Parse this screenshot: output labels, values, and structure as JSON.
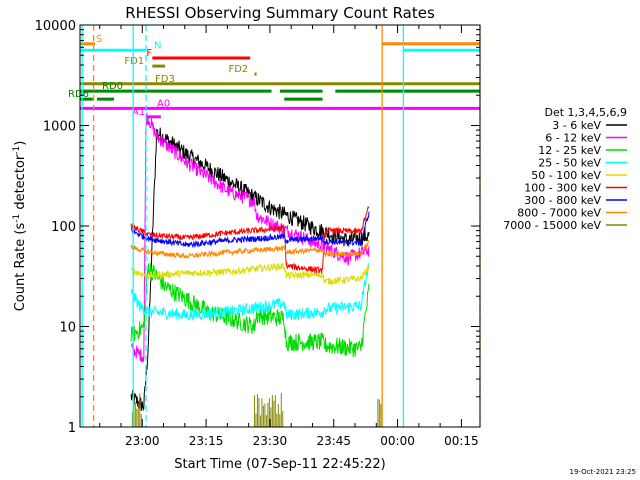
{
  "chart_data": {
    "type": "line",
    "title": "RHESSI Observing Summary Count Rates",
    "xlabel": "Start Time (07-Sep-11 22:45:22)",
    "ylabel_main": "Count Rate (s",
    "ylabel_sup1": "-1",
    "ylabel_mid": " detector",
    "ylabel_sup2": "-1",
    "ylabel_end": ")",
    "timestamp": "19-Oct-2021 23:25",
    "x_start_min": 0,
    "x_end_min": 94,
    "yscale": "log",
    "ylim": [
      1,
      10000
    ],
    "x_ticks": [
      {
        "min": 14.63,
        "label": "23:00"
      },
      {
        "min": 29.63,
        "label": "23:15"
      },
      {
        "min": 44.63,
        "label": "23:30"
      },
      {
        "min": 59.63,
        "label": "23:45"
      },
      {
        "min": 74.63,
        "label": "00:00"
      },
      {
        "min": 89.63,
        "label": "00:15"
      }
    ],
    "y_ticks": [
      {
        "value": 1,
        "label": "1"
      },
      {
        "value": 10,
        "label": "10"
      },
      {
        "value": 100,
        "label": "100"
      },
      {
        "value": 1000,
        "label": "1000"
      },
      {
        "value": 10000,
        "label": "10000"
      }
    ],
    "legend_title": "Det 1,3,4,5,6,9",
    "legend_position": "right",
    "series": [
      {
        "name": "3 - 6 keV",
        "color": "#000000",
        "base": [
          [
            12,
            2
          ],
          [
            15,
            1.6
          ],
          [
            16,
            6
          ],
          [
            18,
            860
          ],
          [
            25,
            520
          ],
          [
            35,
            280
          ],
          [
            45,
            150
          ],
          [
            55,
            95
          ],
          [
            63,
            72
          ],
          [
            68,
            80
          ]
        ],
        "noise": 0.08
      },
      {
        "name": "6 - 12 keV",
        "color": "#ff00ff",
        "base": [
          [
            12,
            6
          ],
          [
            15,
            5
          ],
          [
            15.5,
            1200
          ],
          [
            16,
            1200
          ],
          [
            18,
            780
          ],
          [
            25,
            430
          ],
          [
            35,
            220
          ],
          [
            41,
            175
          ],
          [
            41.5,
            128
          ],
          [
            45,
            105
          ],
          [
            53,
            75
          ],
          [
            63,
            48
          ],
          [
            68,
            58
          ]
        ],
        "noise": 0.07
      },
      {
        "name": "12 - 25 keV",
        "color": "#00dd00",
        "base": [
          [
            12,
            8
          ],
          [
            15,
            10
          ],
          [
            16,
            40
          ],
          [
            20,
            25
          ],
          [
            30,
            14
          ],
          [
            41,
            10
          ],
          [
            41.5,
            13
          ],
          [
            48,
            12
          ],
          [
            48.5,
            7
          ],
          [
            57,
            7
          ],
          [
            57.5,
            6.5
          ],
          [
            66,
            6
          ],
          [
            68,
            25
          ]
        ],
        "noise": 0.09
      },
      {
        "name": "25 - 50 keV",
        "color": "#00ffff",
        "base": [
          [
            12,
            22
          ],
          [
            14,
            16
          ],
          [
            16,
            14
          ],
          [
            25,
            13
          ],
          [
            35,
            14
          ],
          [
            48,
            17
          ],
          [
            48.5,
            13
          ],
          [
            57,
            14
          ],
          [
            57.5,
            15
          ],
          [
            66,
            16
          ],
          [
            68,
            45
          ]
        ],
        "noise": 0.06
      },
      {
        "name": "50 - 100 keV",
        "color": "#dddd00",
        "base": [
          [
            12,
            36
          ],
          [
            16,
            32
          ],
          [
            25,
            34
          ],
          [
            35,
            35
          ],
          [
            48,
            40
          ],
          [
            48.5,
            32
          ],
          [
            57,
            33
          ],
          [
            57.5,
            28
          ],
          [
            66,
            30
          ],
          [
            68,
            40
          ]
        ],
        "noise": 0.035
      },
      {
        "name": "100 - 300 keV",
        "color": "#ff0000",
        "base": [
          [
            12,
            100
          ],
          [
            16,
            82
          ],
          [
            25,
            76
          ],
          [
            35,
            86
          ],
          [
            48,
            95
          ],
          [
            48.5,
            40
          ],
          [
            57,
            36
          ],
          [
            57.5,
            90
          ],
          [
            66,
            88
          ],
          [
            68,
            160
          ]
        ],
        "noise": 0.03
      },
      {
        "name": "300 - 800 keV",
        "color": "#0000ff",
        "base": [
          [
            12,
            90
          ],
          [
            16,
            75
          ],
          [
            25,
            65
          ],
          [
            35,
            72
          ],
          [
            48,
            78
          ],
          [
            48.5,
            72
          ],
          [
            57,
            76
          ],
          [
            57.5,
            70
          ],
          [
            66,
            68
          ],
          [
            68,
            140
          ]
        ],
        "noise": 0.03
      },
      {
        "name": "800 - 7000 keV",
        "color": "#ff8800",
        "base": [
          [
            12,
            62
          ],
          [
            16,
            55
          ],
          [
            25,
            50
          ],
          [
            35,
            55
          ],
          [
            48,
            60
          ],
          [
            48.5,
            55
          ],
          [
            57,
            58
          ],
          [
            57.5,
            52
          ],
          [
            66,
            53
          ],
          [
            68,
            70
          ]
        ],
        "noise": 0.025
      },
      {
        "name": "7000 - 15000 keV",
        "color": "#888800",
        "base": [
          [
            12,
            1
          ],
          [
            68,
            1
          ]
        ],
        "noise": 0
      }
    ],
    "flags": [
      {
        "label": "S",
        "color": "#ff8800",
        "y": 6500,
        "segments": [
          [
            0,
            3.5
          ],
          [
            71,
            94
          ]
        ]
      },
      {
        "label": "N",
        "color": "#00ffff",
        "y": 5600,
        "segments": [
          [
            0,
            15.5
          ],
          [
            76,
            94
          ]
        ]
      },
      {
        "label": "F",
        "color": "#ff0000",
        "y": 4700,
        "segments": [
          [
            17,
            40
          ]
        ]
      },
      {
        "label": "FD1",
        "color": "#888800",
        "y": 3900,
        "segments": [
          [
            17,
            20
          ]
        ]
      },
      {
        "label": "FD2",
        "color": "#888800",
        "y": 3250,
        "segments": [
          [
            41,
            41.5
          ]
        ]
      },
      {
        "label": "FD3",
        "color": "#888800",
        "y": 2600,
        "segments": [
          [
            0,
            94
          ]
        ]
      },
      {
        "label": "RD0",
        "color": "#008800",
        "y": 2200,
        "segments": [
          [
            0,
            45
          ],
          [
            47,
            57
          ],
          [
            60,
            94
          ]
        ]
      },
      {
        "label": "RD6",
        "color": "#008800",
        "y": 1830,
        "segments": [
          [
            0,
            3
          ],
          [
            4,
            8
          ],
          [
            48,
            57
          ]
        ]
      },
      {
        "label": "A0",
        "color": "#ff00ff",
        "y": 1480,
        "segments": [
          [
            0,
            94
          ]
        ]
      },
      {
        "label": "A1",
        "color": "#ff00ff",
        "y": 1220,
        "segments": [
          [
            15.5,
            19
          ]
        ]
      }
    ],
    "vlines": [
      {
        "min": 0.5,
        "color": "#00ffff",
        "dashed": false
      },
      {
        "min": 3.2,
        "color": "#ff8800",
        "dashed": true
      },
      {
        "min": 12.5,
        "color": "#00ffff",
        "dashed": false
      },
      {
        "min": 15.5,
        "color": "#00ffff",
        "dashed": true
      },
      {
        "min": 71.0,
        "color": "#ff8800",
        "dashed": false
      },
      {
        "min": 76.0,
        "color": "#00ffff",
        "dashed": false
      },
      {
        "min": 94.0,
        "color": "#ff8800",
        "dashed": true
      }
    ]
  }
}
